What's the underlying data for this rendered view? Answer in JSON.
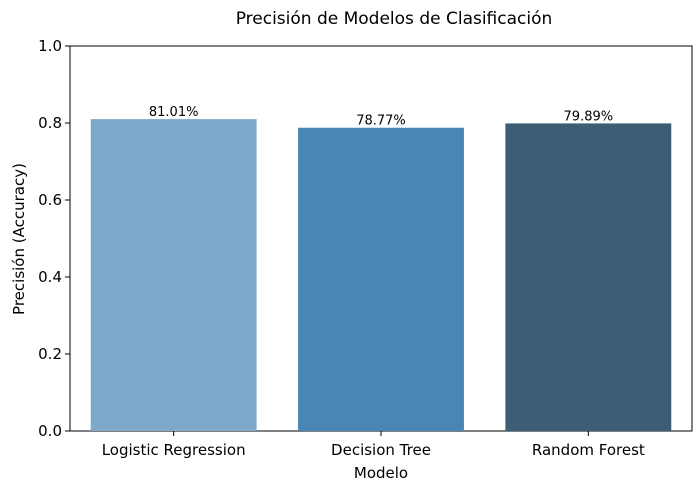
{
  "chart_data": {
    "type": "bar",
    "title": "Precisión de Modelos de Clasificación",
    "xlabel": "Modelo",
    "ylabel": "Precisión (Accuracy)",
    "ylim": [
      0,
      1.0
    ],
    "yticks": [
      "0.0",
      "0.2",
      "0.4",
      "0.6",
      "0.8",
      "1.0"
    ],
    "ytick_values": [
      0,
      0.2,
      0.4,
      0.6,
      0.8,
      1.0
    ],
    "categories": [
      "Logistic Regression",
      "Decision Tree",
      "Random Forest"
    ],
    "values": [
      0.8101,
      0.7877,
      0.7989
    ],
    "data_labels": [
      "81.01%",
      "78.77%",
      "79.89%"
    ],
    "colors": [
      "#7ea9ca",
      "#4986b4",
      "#3c5d74"
    ],
    "grid": false,
    "legend": "none"
  }
}
